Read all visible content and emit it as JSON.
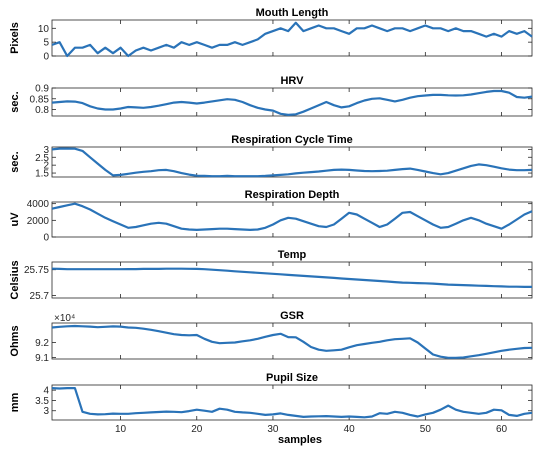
{
  "x_axis": {
    "label": "samples",
    "ticks": [
      "10",
      "20",
      "30",
      "40",
      "50",
      "60"
    ],
    "tick_values": [
      10,
      20,
      30,
      40,
      50,
      60
    ],
    "range": [
      1,
      64
    ]
  },
  "chart_data": [
    {
      "type": "line",
      "title": "Mouth Length",
      "ylabel": "Pixels",
      "ylim": [
        0,
        13
      ],
      "yticks": [
        0,
        5,
        10
      ],
      "ytick_labels": [
        "0",
        "5",
        "10"
      ],
      "exponent": "",
      "color": "#2a73b8",
      "x": [
        1,
        2,
        3,
        4,
        5,
        6,
        7,
        8,
        9,
        10,
        11,
        12,
        13,
        14,
        15,
        16,
        17,
        18,
        19,
        20,
        21,
        22,
        23,
        24,
        25,
        26,
        27,
        28,
        29,
        30,
        31,
        32,
        33,
        34,
        35,
        36,
        37,
        38,
        39,
        40,
        41,
        42,
        43,
        44,
        45,
        46,
        47,
        48,
        49,
        50,
        51,
        52,
        53,
        54,
        55,
        56,
        57,
        58,
        59,
        60,
        61,
        62,
        63,
        64
      ],
      "y": [
        4,
        5,
        0,
        3,
        3,
        4,
        1,
        3,
        1,
        3,
        0,
        2,
        3,
        2,
        3,
        4,
        3,
        5,
        4,
        5,
        4,
        3,
        4,
        4,
        5,
        4,
        5,
        6,
        8,
        9,
        10,
        9,
        12,
        9,
        10,
        11,
        10,
        10,
        9,
        8,
        10,
        10,
        11,
        10,
        9,
        10,
        10,
        9,
        10,
        11,
        10,
        10,
        9,
        10,
        9,
        9,
        8,
        7,
        8,
        7,
        9,
        8,
        9,
        7
      ]
    },
    {
      "type": "line",
      "title": "HRV",
      "ylabel": "sec.",
      "ylim": [
        0.77,
        0.9
      ],
      "yticks": [
        0.8,
        0.85,
        0.9
      ],
      "ytick_labels": [
        "0.8",
        "0.85",
        "0.9"
      ],
      "exponent": "",
      "color": "#2a73b8",
      "x": [
        1,
        2,
        3,
        4,
        5,
        6,
        7,
        8,
        9,
        10,
        11,
        12,
        13,
        14,
        15,
        16,
        17,
        18,
        19,
        20,
        21,
        22,
        23,
        24,
        25,
        26,
        27,
        28,
        29,
        30,
        31,
        32,
        33,
        34,
        35,
        36,
        37,
        38,
        39,
        40,
        41,
        42,
        43,
        44,
        45,
        46,
        47,
        48,
        49,
        50,
        51,
        52,
        53,
        54,
        55,
        56,
        57,
        58,
        59,
        60,
        61,
        62,
        63,
        64
      ],
      "y": [
        0.832,
        0.835,
        0.838,
        0.837,
        0.83,
        0.815,
        0.805,
        0.8,
        0.8,
        0.805,
        0.812,
        0.81,
        0.808,
        0.812,
        0.818,
        0.825,
        0.832,
        0.835,
        0.832,
        0.828,
        0.832,
        0.838,
        0.843,
        0.848,
        0.845,
        0.835,
        0.82,
        0.808,
        0.8,
        0.795,
        0.78,
        0.775,
        0.778,
        0.79,
        0.805,
        0.82,
        0.835,
        0.82,
        0.81,
        0.815,
        0.83,
        0.842,
        0.85,
        0.852,
        0.845,
        0.838,
        0.845,
        0.855,
        0.862,
        0.865,
        0.868,
        0.868,
        0.866,
        0.865,
        0.866,
        0.87,
        0.876,
        0.882,
        0.886,
        0.886,
        0.878,
        0.858,
        0.855,
        0.86
      ]
    },
    {
      "type": "line",
      "title": "Respiration Cycle Time",
      "ylabel": "sec.",
      "ylim": [
        1.25,
        3.15
      ],
      "yticks": [
        1.5,
        2,
        2.5,
        3
      ],
      "ytick_labels": [
        "1.5",
        "2",
        "2.5",
        "3"
      ],
      "exponent": "",
      "color": "#2a73b8",
      "x": [
        1,
        2,
        3,
        4,
        5,
        6,
        7,
        8,
        9,
        10,
        11,
        12,
        13,
        14,
        15,
        16,
        17,
        18,
        19,
        20,
        21,
        22,
        23,
        24,
        25,
        26,
        27,
        28,
        29,
        30,
        31,
        32,
        33,
        34,
        35,
        36,
        37,
        38,
        39,
        40,
        41,
        42,
        43,
        44,
        45,
        46,
        47,
        48,
        49,
        50,
        51,
        52,
        53,
        54,
        55,
        56,
        57,
        58,
        59,
        60,
        61,
        62,
        63,
        64
      ],
      "y": [
        3.0,
        3.05,
        3.05,
        3.04,
        2.9,
        2.5,
        2.1,
        1.7,
        1.35,
        1.38,
        1.45,
        1.52,
        1.58,
        1.62,
        1.68,
        1.7,
        1.62,
        1.5,
        1.4,
        1.33,
        1.32,
        1.3,
        1.3,
        1.32,
        1.3,
        1.3,
        1.3,
        1.3,
        1.32,
        1.35,
        1.38,
        1.42,
        1.48,
        1.52,
        1.56,
        1.6,
        1.65,
        1.7,
        1.72,
        1.7,
        1.66,
        1.63,
        1.62,
        1.63,
        1.65,
        1.7,
        1.75,
        1.78,
        1.7,
        1.6,
        1.5,
        1.42,
        1.5,
        1.65,
        1.8,
        1.95,
        2.05,
        2.0,
        1.9,
        1.8,
        1.72,
        1.68,
        1.68,
        1.7
      ]
    },
    {
      "type": "line",
      "title": "Respiration Depth",
      "ylabel": "uV",
      "ylim": [
        0,
        4200
      ],
      "yticks": [
        0,
        2000,
        4000
      ],
      "ytick_labels": [
        "0",
        "2000",
        "4000"
      ],
      "exponent": "",
      "color": "#2a73b8",
      "x": [
        1,
        2,
        3,
        4,
        5,
        6,
        7,
        8,
        9,
        10,
        11,
        12,
        13,
        14,
        15,
        16,
        17,
        18,
        19,
        20,
        21,
        22,
        23,
        24,
        25,
        26,
        27,
        28,
        29,
        30,
        31,
        32,
        33,
        34,
        35,
        36,
        37,
        38,
        39,
        40,
        41,
        42,
        43,
        44,
        45,
        46,
        47,
        48,
        49,
        50,
        51,
        52,
        53,
        54,
        55,
        56,
        57,
        58,
        59,
        60,
        61,
        62,
        63,
        64
      ],
      "y": [
        3400,
        3600,
        3800,
        4000,
        3700,
        3300,
        2800,
        2300,
        1900,
        1500,
        1100,
        1200,
        1400,
        1600,
        1700,
        1600,
        1300,
        1000,
        900,
        850,
        900,
        950,
        1000,
        1000,
        950,
        900,
        850,
        900,
        1100,
        1500,
        2000,
        2300,
        2200,
        1900,
        1600,
        1300,
        1200,
        1500,
        2200,
        2900,
        2700,
        2200,
        1700,
        1200,
        1500,
        2200,
        2900,
        3000,
        2500,
        2000,
        1500,
        1100,
        1200,
        1600,
        2000,
        2300,
        2000,
        1600,
        1300,
        1000,
        1500,
        2100,
        2700,
        3100
      ]
    },
    {
      "type": "line",
      "title": "Temp",
      "ylabel": "Celsius",
      "ylim": [
        25.695,
        25.765
      ],
      "yticks": [
        25.7,
        25.75
      ],
      "ytick_labels": [
        "25.7",
        "25.75"
      ],
      "exponent": "",
      "color": "#2a73b8",
      "x": [
        1,
        2,
        3,
        4,
        5,
        6,
        7,
        8,
        9,
        10,
        11,
        12,
        13,
        14,
        15,
        16,
        17,
        18,
        19,
        20,
        21,
        22,
        23,
        24,
        25,
        26,
        27,
        28,
        29,
        30,
        31,
        32,
        33,
        34,
        35,
        36,
        37,
        38,
        39,
        40,
        41,
        42,
        43,
        44,
        45,
        46,
        47,
        48,
        49,
        50,
        51,
        52,
        53,
        54,
        55,
        56,
        57,
        58,
        59,
        60,
        61,
        62,
        63,
        64
      ],
      "y": [
        25.752,
        25.7515,
        25.751,
        25.751,
        25.751,
        25.751,
        25.751,
        25.751,
        25.751,
        25.751,
        25.7512,
        25.7512,
        25.7515,
        25.7515,
        25.7515,
        25.752,
        25.752,
        25.752,
        25.7518,
        25.7515,
        25.751,
        25.75,
        25.749,
        25.748,
        25.747,
        25.746,
        25.745,
        25.744,
        25.743,
        25.742,
        25.741,
        25.74,
        25.739,
        25.738,
        25.737,
        25.736,
        25.735,
        25.734,
        25.733,
        25.732,
        25.731,
        25.73,
        25.729,
        25.728,
        25.727,
        25.726,
        25.725,
        25.7245,
        25.724,
        25.7235,
        25.723,
        25.722,
        25.721,
        25.7205,
        25.72,
        25.7195,
        25.719,
        25.7185,
        25.718,
        25.7175,
        25.717,
        25.717,
        25.7165,
        25.7165
      ]
    },
    {
      "type": "line",
      "title": "GSR",
      "ylabel": "Ohms",
      "ylim": [
        9.09,
        9.33
      ],
      "yticks": [
        9.1,
        9.2
      ],
      "ytick_labels": [
        "9.1",
        "9.2"
      ],
      "exponent": "×10⁴",
      "color": "#2a73b8",
      "x": [
        1,
        2,
        3,
        4,
        5,
        6,
        7,
        8,
        9,
        10,
        11,
        12,
        13,
        14,
        15,
        16,
        17,
        18,
        19,
        20,
        21,
        22,
        23,
        24,
        25,
        26,
        27,
        28,
        29,
        30,
        31,
        32,
        33,
        34,
        35,
        36,
        37,
        38,
        39,
        40,
        41,
        42,
        43,
        44,
        45,
        46,
        47,
        48,
        49,
        50,
        51,
        52,
        53,
        54,
        55,
        56,
        57,
        58,
        59,
        60,
        61,
        62,
        63,
        64
      ],
      "y": [
        9.3,
        9.305,
        9.308,
        9.31,
        9.308,
        9.306,
        9.302,
        9.305,
        9.307,
        9.306,
        9.3,
        9.298,
        9.292,
        9.285,
        9.275,
        9.265,
        9.255,
        9.25,
        9.248,
        9.25,
        9.225,
        9.205,
        9.195,
        9.198,
        9.2,
        9.208,
        9.215,
        9.225,
        9.238,
        9.25,
        9.258,
        9.236,
        9.235,
        9.205,
        9.17,
        9.152,
        9.145,
        9.148,
        9.152,
        9.168,
        9.182,
        9.19,
        9.198,
        9.205,
        9.215,
        9.222,
        9.225,
        9.228,
        9.2,
        9.16,
        9.12,
        9.105,
        9.098,
        9.098,
        9.1,
        9.108,
        9.115,
        9.125,
        9.135,
        9.145,
        9.152,
        9.158,
        9.163,
        9.165
      ]
    },
    {
      "type": "line",
      "title": "Pupil Size",
      "ylabel": "mm",
      "ylim": [
        2.55,
        4.25
      ],
      "yticks": [
        3,
        3.5,
        4
      ],
      "ytick_labels": [
        "3",
        "3.5",
        "4"
      ],
      "exponent": "",
      "color": "#2a73b8",
      "x": [
        1,
        2,
        3,
        4,
        5,
        6,
        7,
        8,
        9,
        10,
        11,
        12,
        13,
        14,
        15,
        16,
        17,
        18,
        19,
        20,
        21,
        22,
        23,
        24,
        25,
        26,
        27,
        28,
        29,
        30,
        31,
        32,
        33,
        34,
        35,
        36,
        37,
        38,
        39,
        40,
        41,
        42,
        43,
        44,
        45,
        46,
        47,
        48,
        49,
        50,
        51,
        52,
        53,
        54,
        55,
        56,
        57,
        58,
        59,
        60,
        61,
        62,
        63,
        64
      ],
      "y": [
        4.1,
        4.08,
        4.1,
        4.1,
        2.95,
        2.85,
        2.82,
        2.83,
        2.86,
        2.85,
        2.85,
        2.88,
        2.9,
        2.92,
        2.94,
        2.96,
        2.95,
        2.93,
        2.98,
        3.05,
        3.0,
        2.95,
        3.1,
        3.05,
        2.95,
        2.92,
        2.9,
        2.85,
        2.8,
        2.82,
        2.87,
        2.8,
        2.75,
        2.7,
        2.72,
        2.73,
        2.74,
        2.72,
        2.7,
        2.72,
        2.7,
        2.68,
        2.72,
        2.88,
        2.85,
        2.95,
        2.9,
        2.8,
        2.72,
        2.82,
        2.9,
        3.05,
        3.25,
        3.05,
        2.95,
        2.9,
        2.85,
        2.9,
        3.05,
        3.02,
        2.8,
        2.75,
        2.85,
        2.9
      ]
    }
  ]
}
